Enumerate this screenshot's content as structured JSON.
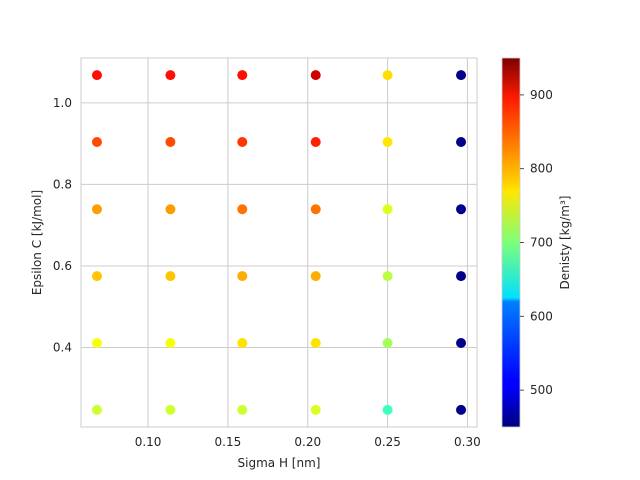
{
  "chart_data": {
    "type": "scatter",
    "title": "",
    "xlabel": "Sigma H [nm]",
    "ylabel": "Epsilon C [kJ/mol]",
    "xlim": [
      0.058,
      0.306
    ],
    "ylim": [
      0.205,
      1.11
    ],
    "xticks": [
      0.1,
      0.15,
      0.2,
      0.25,
      0.3
    ],
    "xtick_labels": [
      "0.10",
      "0.15",
      "0.20",
      "0.25",
      "0.30"
    ],
    "yticks": [
      0.4,
      0.6,
      0.8,
      1.0
    ],
    "ytick_labels": [
      "0.4",
      "0.6",
      "0.8",
      "1.0"
    ],
    "grid": true,
    "colormap": "jet",
    "colorbar": {
      "label": "Denisty [kg/m³]",
      "range": [
        450,
        950
      ],
      "ticks": [
        500,
        600,
        700,
        800,
        900
      ],
      "tick_labels": [
        "500",
        "600",
        "700",
        "800",
        "900"
      ]
    },
    "x": [
      0.068,
      0.114,
      0.159,
      0.205,
      0.25,
      0.296
    ],
    "y": [
      0.247,
      0.411,
      0.575,
      0.739,
      0.904,
      1.068
    ],
    "density": [
      [
        738,
        738,
        738,
        745,
        668,
        455
      ],
      [
        758,
        758,
        776,
        776,
        718,
        455
      ],
      [
        791,
        791,
        803,
        803,
        728,
        455
      ],
      [
        811,
        811,
        831,
        831,
        748,
        455
      ],
      [
        851,
        851,
        861,
        871,
        774,
        455
      ],
      [
        881,
        881,
        881,
        911,
        778,
        455
      ]
    ]
  }
}
